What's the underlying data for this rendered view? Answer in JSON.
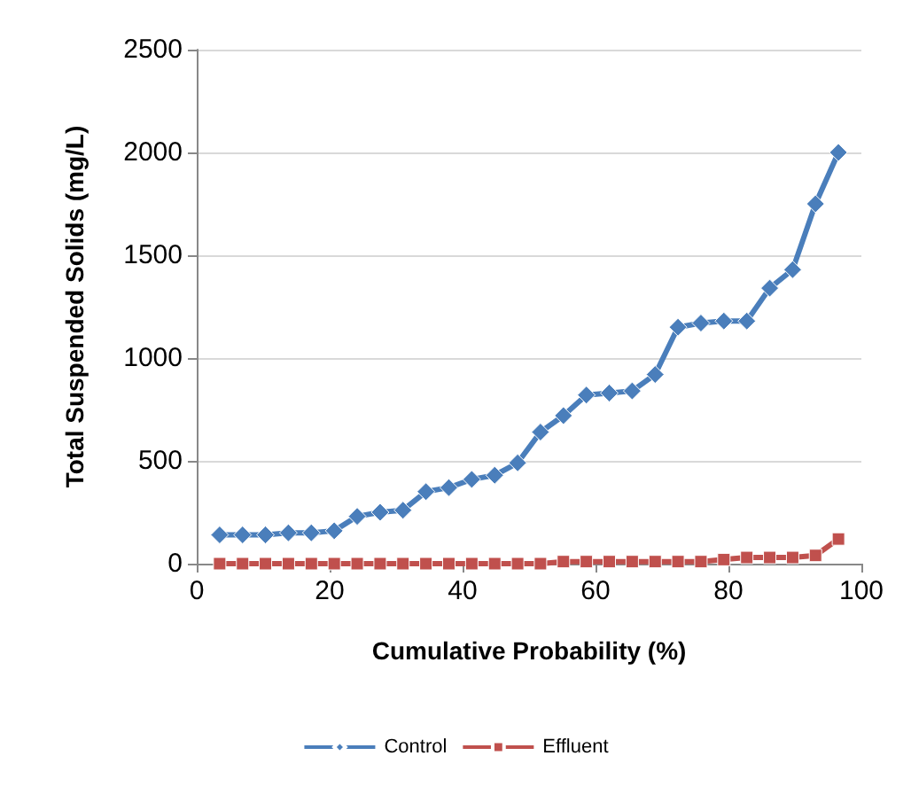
{
  "chart_data": {
    "type": "line",
    "xlabel": "Cumulative Probability (%)",
    "ylabel": "Total Suspended Solids (mg/L)",
    "x": [
      3.45,
      6.9,
      10.34,
      13.79,
      17.24,
      20.69,
      24.14,
      27.59,
      31.03,
      34.48,
      37.93,
      41.38,
      44.83,
      48.28,
      51.72,
      55.17,
      58.62,
      62.07,
      65.52,
      68.97,
      72.41,
      75.86,
      79.31,
      82.76,
      86.21,
      89.66,
      93.1,
      96.55
    ],
    "series": [
      {
        "name": "Control",
        "color": "#4a7ebb",
        "values": [
          140,
          140,
          140,
          150,
          150,
          160,
          230,
          250,
          260,
          350,
          370,
          410,
          430,
          490,
          640,
          720,
          820,
          830,
          840,
          920,
          1150,
          1170,
          1180,
          1180,
          1340,
          1430,
          1750,
          2000
        ]
      },
      {
        "name": "Effluent",
        "color": "#c0504d",
        "marker": "square",
        "values": [
          0,
          0,
          0,
          0,
          0,
          0,
          0,
          0,
          0,
          0,
          0,
          0,
          0,
          0,
          0,
          10,
          10,
          10,
          10,
          10,
          10,
          10,
          20,
          30,
          30,
          30,
          40,
          120
        ]
      }
    ],
    "xlim": [
      0,
      100
    ],
    "xticks": [
      0,
      20,
      40,
      60,
      80,
      100
    ],
    "ylim": [
      0,
      2500
    ],
    "yticks": [
      0,
      500,
      1000,
      1500,
      2000,
      2500
    ],
    "grid": "y",
    "legend": "bottom",
    "marker": "diamond",
    "line_style": "solid"
  }
}
